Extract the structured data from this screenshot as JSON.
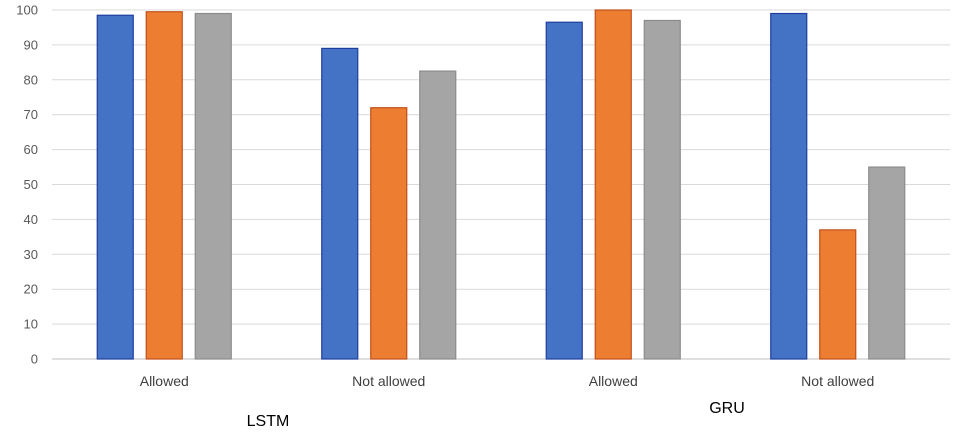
{
  "chart_data": {
    "type": "bar",
    "title": "",
    "xlabel": "",
    "ylabel": "",
    "ylim": [
      0,
      100
    ],
    "yticks": [
      0,
      10,
      20,
      30,
      40,
      50,
      60,
      70,
      80,
      90,
      100
    ],
    "categories": [
      "Allowed",
      "Not allowed",
      "Allowed",
      "Not allowed"
    ],
    "groups": [
      {
        "label": "LSTM",
        "categories": [
          "Allowed",
          "Not allowed"
        ]
      },
      {
        "label": "GRU",
        "categories": [
          "Allowed",
          "Not allowed"
        ]
      }
    ],
    "series": [
      {
        "color": "#4472c4",
        "edge": "#1f3f9e",
        "values": [
          98.5,
          89,
          96.5,
          99
        ]
      },
      {
        "color": "#ed7d31",
        "edge": "#c0501a",
        "values": [
          99.5,
          72,
          100,
          37
        ]
      },
      {
        "color": "#a5a5a5",
        "edge": "#8c8c8c",
        "values": [
          99,
          82.5,
          97,
          55
        ]
      }
    ],
    "grid": true,
    "legend": "none"
  }
}
